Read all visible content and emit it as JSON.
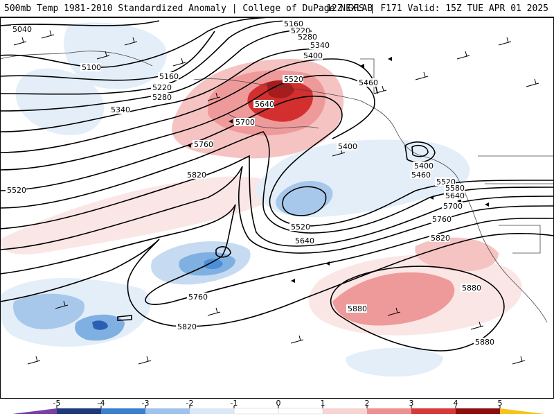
{
  "header": {
    "title_left": "500mb Temp 1981-2010 Standardized Anomaly | College of DuPage NEXLAB",
    "title_right": "12Z GFS | F171 Valid: 15Z TUE APR 01 2025"
  },
  "colors": {
    "anom_pos": [
      "#fbe6e6",
      "#f6c3c3",
      "#ef9a9a",
      "#e57373",
      "#d32f2f",
      "#a71c1c"
    ],
    "anom_neg": [
      "#e3eef9",
      "#c6dbf1",
      "#a7c8ea",
      "#7fb0e1",
      "#4b8fd6",
      "#2b5fb3"
    ]
  },
  "height_labels": [
    {
      "text": "5040"
    },
    {
      "text": "5100"
    },
    {
      "text": "5160"
    },
    {
      "text": "5220"
    },
    {
      "text": "5280"
    },
    {
      "text": "5340"
    },
    {
      "text": "5520"
    },
    {
      "text": "5640"
    },
    {
      "text": "5700"
    },
    {
      "text": "5760"
    },
    {
      "text": "5820"
    },
    {
      "text": "5160"
    },
    {
      "text": "5220"
    },
    {
      "text": "5280"
    },
    {
      "text": "5340"
    },
    {
      "text": "5400"
    },
    {
      "text": "5460"
    },
    {
      "text": "5400"
    },
    {
      "text": "5400"
    },
    {
      "text": "5460"
    },
    {
      "text": "5520"
    },
    {
      "text": "5520"
    },
    {
      "text": "5580"
    },
    {
      "text": "5640"
    },
    {
      "text": "5640"
    },
    {
      "text": "5700"
    },
    {
      "text": "5760"
    },
    {
      "text": "5820"
    },
    {
      "text": "5760"
    },
    {
      "text": "5820"
    },
    {
      "text": "5880"
    },
    {
      "text": "5880"
    },
    {
      "text": "5880"
    },
    {
      "text": "5520"
    }
  ],
  "colorbar": {
    "labels": [
      "-5",
      "-4",
      "-3",
      "-2",
      "-1",
      "0",
      "1",
      "2",
      "3",
      "4",
      "5"
    ],
    "colors": [
      "#7b3fa8",
      "#1f3a7a",
      "#3a7fd0",
      "#9fc3ea",
      "#dbe8f6",
      "#ffffff",
      "#ffffff",
      "#f7d3d3",
      "#eb9191",
      "#d63a3a",
      "#8e0e0e",
      "#f5c518"
    ]
  }
}
